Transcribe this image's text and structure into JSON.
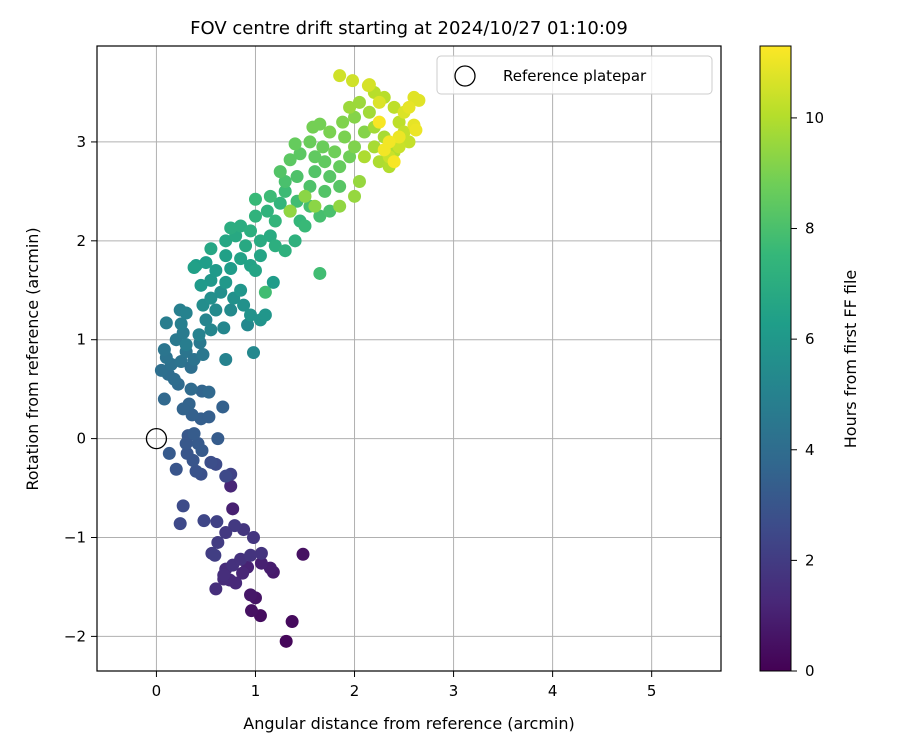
{
  "chart_data": {
    "type": "scatter",
    "title": "FOV centre drift starting at 2024/10/27 01:10:09",
    "xlabel": "Angular distance from reference (arcmin)",
    "ylabel": "Rotation from reference (arcmin)",
    "xlim": [
      -0.6,
      5.7
    ],
    "ylim": [
      -2.35,
      3.97
    ],
    "xticks": [
      0,
      1,
      2,
      3,
      4,
      5
    ],
    "yticks": [
      -2,
      -1,
      0,
      1,
      2,
      3
    ],
    "grid": true,
    "legend": {
      "placement": "top-right",
      "entries": [
        "Reference platepar"
      ]
    },
    "reference_point": {
      "name": "Reference platepar",
      "x": 0.0,
      "y": 0.0,
      "marker": "open-circle"
    },
    "colorbar": {
      "label": "Hours from first FF file",
      "colormap": "viridis",
      "range": [
        0,
        11.3
      ],
      "ticks": [
        0,
        2,
        4,
        6,
        8,
        10
      ]
    },
    "colormap_stops": [
      "#440154",
      "#482878",
      "#3e4989",
      "#31688e",
      "#26828e",
      "#1f9e89",
      "#35b779",
      "#6ece58",
      "#b5de2b",
      "#fde725"
    ],
    "points": [
      {
        "x": 1.31,
        "y": -2.05,
        "t": 0.2
      },
      {
        "x": 1.37,
        "y": -1.85,
        "t": 0.3
      },
      {
        "x": 1.05,
        "y": -1.79,
        "t": 0.4
      },
      {
        "x": 0.96,
        "y": -1.74,
        "t": 0.5
      },
      {
        "x": 1.0,
        "y": -1.61,
        "t": 0.6
      },
      {
        "x": 0.95,
        "y": -1.58,
        "t": 0.7
      },
      {
        "x": 1.18,
        "y": -1.35,
        "t": 0.8
      },
      {
        "x": 1.15,
        "y": -1.31,
        "t": 0.9
      },
      {
        "x": 1.48,
        "y": -1.17,
        "t": 0.5
      },
      {
        "x": 1.06,
        "y": -1.26,
        "t": 1.0
      },
      {
        "x": 0.92,
        "y": -1.3,
        "t": 1.1
      },
      {
        "x": 0.87,
        "y": -1.36,
        "t": 1.2
      },
      {
        "x": 0.8,
        "y": -1.46,
        "t": 1.3
      },
      {
        "x": 0.74,
        "y": -1.43,
        "t": 1.3
      },
      {
        "x": 0.7,
        "y": -1.32,
        "t": 1.4
      },
      {
        "x": 0.68,
        "y": -1.42,
        "t": 1.4
      },
      {
        "x": 0.6,
        "y": -1.52,
        "t": 1.5
      },
      {
        "x": 0.68,
        "y": -1.38,
        "t": 1.5
      },
      {
        "x": 0.77,
        "y": -1.28,
        "t": 1.6
      },
      {
        "x": 0.85,
        "y": -1.22,
        "t": 1.6
      },
      {
        "x": 0.95,
        "y": -1.18,
        "t": 1.7
      },
      {
        "x": 1.06,
        "y": -1.16,
        "t": 1.7
      },
      {
        "x": 0.98,
        "y": -1.0,
        "t": 1.8
      },
      {
        "x": 0.88,
        "y": -0.92,
        "t": 1.8
      },
      {
        "x": 0.79,
        "y": -0.88,
        "t": 1.9
      },
      {
        "x": 0.7,
        "y": -0.95,
        "t": 1.9
      },
      {
        "x": 0.62,
        "y": -1.05,
        "t": 2.0
      },
      {
        "x": 0.56,
        "y": -1.16,
        "t": 2.0
      },
      {
        "x": 0.59,
        "y": -1.18,
        "t": 2.1
      },
      {
        "x": 0.77,
        "y": -0.71,
        "t": 1.0
      },
      {
        "x": 0.75,
        "y": -0.48,
        "t": 1.2
      },
      {
        "x": 0.61,
        "y": -0.84,
        "t": 2.2
      },
      {
        "x": 0.48,
        "y": -0.83,
        "t": 2.4
      },
      {
        "x": 0.27,
        "y": -0.68,
        "t": 2.6
      },
      {
        "x": 0.24,
        "y": -0.86,
        "t": 2.5
      },
      {
        "x": 0.75,
        "y": -0.36,
        "t": 2.3
      },
      {
        "x": 0.7,
        "y": -0.38,
        "t": 2.5
      },
      {
        "x": 0.6,
        "y": -0.26,
        "t": 2.6
      },
      {
        "x": 0.55,
        "y": -0.24,
        "t": 2.7
      },
      {
        "x": 0.45,
        "y": -0.36,
        "t": 2.8
      },
      {
        "x": 0.4,
        "y": -0.33,
        "t": 2.9
      },
      {
        "x": 0.37,
        "y": -0.22,
        "t": 3.0
      },
      {
        "x": 0.31,
        "y": -0.15,
        "t": 3.0
      },
      {
        "x": 0.3,
        "y": -0.05,
        "t": 3.1
      },
      {
        "x": 0.32,
        "y": 0.03,
        "t": 3.1
      },
      {
        "x": 0.42,
        "y": -0.05,
        "t": 3.2
      },
      {
        "x": 0.46,
        "y": -0.12,
        "t": 3.2
      },
      {
        "x": 0.62,
        "y": 0.0,
        "t": 3.3
      },
      {
        "x": 0.2,
        "y": -0.31,
        "t": 3.0
      },
      {
        "x": 0.13,
        "y": -0.15,
        "t": 3.2
      },
      {
        "x": 0.38,
        "y": 0.05,
        "t": 3.3
      },
      {
        "x": 0.45,
        "y": 0.2,
        "t": 3.4
      },
      {
        "x": 0.53,
        "y": 0.22,
        "t": 3.4
      },
      {
        "x": 0.36,
        "y": 0.24,
        "t": 3.5
      },
      {
        "x": 0.33,
        "y": 0.35,
        "t": 3.6
      },
      {
        "x": 0.27,
        "y": 0.3,
        "t": 3.6
      },
      {
        "x": 0.46,
        "y": 0.48,
        "t": 3.7
      },
      {
        "x": 0.53,
        "y": 0.47,
        "t": 3.8
      },
      {
        "x": 0.67,
        "y": 0.32,
        "t": 3.5
      },
      {
        "x": 0.08,
        "y": 0.4,
        "t": 3.8
      },
      {
        "x": 0.35,
        "y": 0.5,
        "t": 3.9
      },
      {
        "x": 0.22,
        "y": 0.55,
        "t": 3.9
      },
      {
        "x": 0.18,
        "y": 0.6,
        "t": 4.0
      },
      {
        "x": 0.12,
        "y": 0.65,
        "t": 4.0
      },
      {
        "x": 0.05,
        "y": 0.69,
        "t": 4.1
      },
      {
        "x": 0.15,
        "y": 0.75,
        "t": 4.2
      },
      {
        "x": 0.25,
        "y": 0.78,
        "t": 4.3
      },
      {
        "x": 0.35,
        "y": 0.72,
        "t": 4.1
      },
      {
        "x": 0.1,
        "y": 0.82,
        "t": 4.3
      },
      {
        "x": 0.08,
        "y": 0.9,
        "t": 4.4
      },
      {
        "x": 0.3,
        "y": 0.88,
        "t": 4.4
      },
      {
        "x": 0.38,
        "y": 0.8,
        "t": 4.3
      },
      {
        "x": 0.44,
        "y": 0.97,
        "t": 4.6
      },
      {
        "x": 0.2,
        "y": 1.0,
        "t": 4.6
      },
      {
        "x": 0.27,
        "y": 1.07,
        "t": 4.7
      },
      {
        "x": 0.47,
        "y": 0.85,
        "t": 4.5
      },
      {
        "x": 0.3,
        "y": 0.95,
        "t": 4.8
      },
      {
        "x": 0.1,
        "y": 1.17,
        "t": 4.8
      },
      {
        "x": 0.25,
        "y": 1.16,
        "t": 4.9
      },
      {
        "x": 0.24,
        "y": 1.3,
        "t": 4.9
      },
      {
        "x": 0.3,
        "y": 1.27,
        "t": 5.0
      },
      {
        "x": 0.43,
        "y": 1.05,
        "t": 5.0
      },
      {
        "x": 0.5,
        "y": 1.2,
        "t": 5.1
      },
      {
        "x": 0.55,
        "y": 1.1,
        "t": 5.2
      },
      {
        "x": 0.68,
        "y": 1.12,
        "t": 5.2
      },
      {
        "x": 0.7,
        "y": 0.8,
        "t": 5.0
      },
      {
        "x": 0.98,
        "y": 0.87,
        "t": 5.3
      },
      {
        "x": 0.92,
        "y": 1.15,
        "t": 5.3
      },
      {
        "x": 0.75,
        "y": 1.3,
        "t": 5.4
      },
      {
        "x": 0.6,
        "y": 1.3,
        "t": 5.4
      },
      {
        "x": 0.47,
        "y": 1.35,
        "t": 5.5
      },
      {
        "x": 0.55,
        "y": 1.42,
        "t": 5.6
      },
      {
        "x": 0.65,
        "y": 1.48,
        "t": 5.6
      },
      {
        "x": 0.78,
        "y": 1.42,
        "t": 5.7
      },
      {
        "x": 0.88,
        "y": 1.35,
        "t": 5.7
      },
      {
        "x": 0.95,
        "y": 1.25,
        "t": 5.8
      },
      {
        "x": 1.05,
        "y": 1.2,
        "t": 5.8
      },
      {
        "x": 1.1,
        "y": 1.25,
        "t": 5.9
      },
      {
        "x": 0.85,
        "y": 1.5,
        "t": 5.9
      },
      {
        "x": 0.7,
        "y": 1.58,
        "t": 6.0
      },
      {
        "x": 0.55,
        "y": 1.6,
        "t": 6.0
      },
      {
        "x": 0.45,
        "y": 1.55,
        "t": 6.1
      },
      {
        "x": 0.6,
        "y": 1.7,
        "t": 6.1
      },
      {
        "x": 0.75,
        "y": 1.72,
        "t": 6.2
      },
      {
        "x": 1.18,
        "y": 1.58,
        "t": 6.2
      },
      {
        "x": 0.5,
        "y": 1.78,
        "t": 6.3
      },
      {
        "x": 0.4,
        "y": 1.75,
        "t": 6.3
      },
      {
        "x": 0.38,
        "y": 1.73,
        "t": 6.4
      },
      {
        "x": 0.7,
        "y": 1.85,
        "t": 6.4
      },
      {
        "x": 0.85,
        "y": 1.82,
        "t": 6.5
      },
      {
        "x": 0.95,
        "y": 1.75,
        "t": 6.5
      },
      {
        "x": 1.0,
        "y": 1.7,
        "t": 6.6
      },
      {
        "x": 1.05,
        "y": 1.85,
        "t": 6.6
      },
      {
        "x": 0.55,
        "y": 1.92,
        "t": 6.7
      },
      {
        "x": 0.7,
        "y": 2.0,
        "t": 6.7
      },
      {
        "x": 0.8,
        "y": 2.05,
        "t": 6.8
      },
      {
        "x": 0.9,
        "y": 1.95,
        "t": 6.8
      },
      {
        "x": 1.05,
        "y": 2.0,
        "t": 6.9
      },
      {
        "x": 1.15,
        "y": 2.05,
        "t": 6.9
      },
      {
        "x": 0.75,
        "y": 2.13,
        "t": 7.0
      },
      {
        "x": 0.85,
        "y": 2.15,
        "t": 7.0
      },
      {
        "x": 0.95,
        "y": 2.1,
        "t": 7.1
      },
      {
        "x": 1.2,
        "y": 1.95,
        "t": 7.1
      },
      {
        "x": 1.3,
        "y": 1.9,
        "t": 7.2
      },
      {
        "x": 1.4,
        "y": 2.0,
        "t": 7.2
      },
      {
        "x": 1.0,
        "y": 2.25,
        "t": 7.3
      },
      {
        "x": 1.12,
        "y": 2.3,
        "t": 7.3
      },
      {
        "x": 1.2,
        "y": 2.2,
        "t": 7.4
      },
      {
        "x": 1.25,
        "y": 2.38,
        "t": 7.4
      },
      {
        "x": 1.35,
        "y": 2.3,
        "t": 7.5
      },
      {
        "x": 1.45,
        "y": 2.2,
        "t": 7.5
      },
      {
        "x": 1.5,
        "y": 2.15,
        "t": 7.6
      },
      {
        "x": 1.1,
        "y": 1.48,
        "t": 7.8
      },
      {
        "x": 1.65,
        "y": 1.67,
        "t": 7.8
      },
      {
        "x": 1.0,
        "y": 2.42,
        "t": 7.6
      },
      {
        "x": 1.15,
        "y": 2.45,
        "t": 7.7
      },
      {
        "x": 1.3,
        "y": 2.5,
        "t": 7.7
      },
      {
        "x": 1.42,
        "y": 2.4,
        "t": 7.8
      },
      {
        "x": 1.55,
        "y": 2.35,
        "t": 7.9
      },
      {
        "x": 1.65,
        "y": 2.25,
        "t": 7.9
      },
      {
        "x": 1.75,
        "y": 2.3,
        "t": 8.0
      },
      {
        "x": 1.3,
        "y": 2.6,
        "t": 8.0
      },
      {
        "x": 1.42,
        "y": 2.65,
        "t": 8.1
      },
      {
        "x": 1.55,
        "y": 2.55,
        "t": 8.1
      },
      {
        "x": 1.7,
        "y": 2.5,
        "t": 8.2
      },
      {
        "x": 1.6,
        "y": 2.7,
        "t": 8.2
      },
      {
        "x": 1.75,
        "y": 2.65,
        "t": 8.3
      },
      {
        "x": 1.85,
        "y": 2.55,
        "t": 8.3
      },
      {
        "x": 1.35,
        "y": 2.82,
        "t": 8.4
      },
      {
        "x": 1.45,
        "y": 2.88,
        "t": 8.4
      },
      {
        "x": 1.6,
        "y": 2.85,
        "t": 8.5
      },
      {
        "x": 1.7,
        "y": 2.8,
        "t": 8.5
      },
      {
        "x": 1.85,
        "y": 2.75,
        "t": 8.6
      },
      {
        "x": 1.25,
        "y": 2.7,
        "t": 8.2
      },
      {
        "x": 1.4,
        "y": 2.98,
        "t": 8.6
      },
      {
        "x": 1.55,
        "y": 3.0,
        "t": 8.7
      },
      {
        "x": 1.68,
        "y": 2.95,
        "t": 8.7
      },
      {
        "x": 1.8,
        "y": 2.9,
        "t": 8.8
      },
      {
        "x": 1.95,
        "y": 2.85,
        "t": 8.8
      },
      {
        "x": 1.58,
        "y": 3.15,
        "t": 8.9
      },
      {
        "x": 1.65,
        "y": 3.18,
        "t": 8.9
      },
      {
        "x": 1.75,
        "y": 3.1,
        "t": 9.0
      },
      {
        "x": 1.9,
        "y": 3.05,
        "t": 9.0
      },
      {
        "x": 2.0,
        "y": 2.95,
        "t": 9.1
      },
      {
        "x": 1.88,
        "y": 3.2,
        "t": 9.1
      },
      {
        "x": 2.0,
        "y": 3.25,
        "t": 9.2
      },
      {
        "x": 2.1,
        "y": 3.1,
        "t": 9.2
      },
      {
        "x": 1.5,
        "y": 2.45,
        "t": 9.3
      },
      {
        "x": 1.6,
        "y": 2.35,
        "t": 9.3
      },
      {
        "x": 1.35,
        "y": 2.3,
        "t": 9.4
      },
      {
        "x": 1.85,
        "y": 2.35,
        "t": 9.4
      },
      {
        "x": 2.0,
        "y": 2.45,
        "t": 9.5
      },
      {
        "x": 2.05,
        "y": 2.6,
        "t": 9.5
      },
      {
        "x": 1.95,
        "y": 3.35,
        "t": 9.6
      },
      {
        "x": 2.05,
        "y": 3.4,
        "t": 9.6
      },
      {
        "x": 2.15,
        "y": 3.3,
        "t": 9.7
      },
      {
        "x": 2.2,
        "y": 3.15,
        "t": 9.7
      },
      {
        "x": 2.3,
        "y": 3.05,
        "t": 9.8
      },
      {
        "x": 2.2,
        "y": 2.95,
        "t": 9.8
      },
      {
        "x": 2.1,
        "y": 2.85,
        "t": 9.9
      },
      {
        "x": 2.25,
        "y": 2.8,
        "t": 9.9
      },
      {
        "x": 2.35,
        "y": 2.75,
        "t": 10.0
      },
      {
        "x": 2.4,
        "y": 2.9,
        "t": 10.0
      },
      {
        "x": 2.2,
        "y": 3.5,
        "t": 10.1
      },
      {
        "x": 2.3,
        "y": 3.45,
        "t": 10.1
      },
      {
        "x": 2.4,
        "y": 3.35,
        "t": 10.2
      },
      {
        "x": 2.45,
        "y": 3.2,
        "t": 10.2
      },
      {
        "x": 2.5,
        "y": 3.1,
        "t": 10.3
      },
      {
        "x": 2.55,
        "y": 3.0,
        "t": 10.3
      },
      {
        "x": 2.45,
        "y": 2.95,
        "t": 10.4
      },
      {
        "x": 2.35,
        "y": 2.85,
        "t": 10.4
      },
      {
        "x": 1.85,
        "y": 3.67,
        "t": 10.5
      },
      {
        "x": 1.98,
        "y": 3.62,
        "t": 10.5
      },
      {
        "x": 2.15,
        "y": 3.58,
        "t": 10.6
      },
      {
        "x": 2.14,
        "y": 3.57,
        "t": 10.6
      },
      {
        "x": 2.25,
        "y": 3.4,
        "t": 10.7
      },
      {
        "x": 2.5,
        "y": 3.3,
        "t": 10.7
      },
      {
        "x": 2.6,
        "y": 3.45,
        "t": 10.8
      },
      {
        "x": 2.65,
        "y": 3.42,
        "t": 10.8
      },
      {
        "x": 2.55,
        "y": 3.35,
        "t": 10.9
      },
      {
        "x": 2.6,
        "y": 3.17,
        "t": 10.9
      },
      {
        "x": 2.62,
        "y": 3.12,
        "t": 11.0
      },
      {
        "x": 2.45,
        "y": 3.05,
        "t": 11.0
      },
      {
        "x": 2.35,
        "y": 3.0,
        "t": 11.1
      },
      {
        "x": 2.3,
        "y": 2.92,
        "t": 11.1
      },
      {
        "x": 2.4,
        "y": 2.8,
        "t": 11.2
      },
      {
        "x": 2.25,
        "y": 3.2,
        "t": 11.2
      }
    ]
  }
}
